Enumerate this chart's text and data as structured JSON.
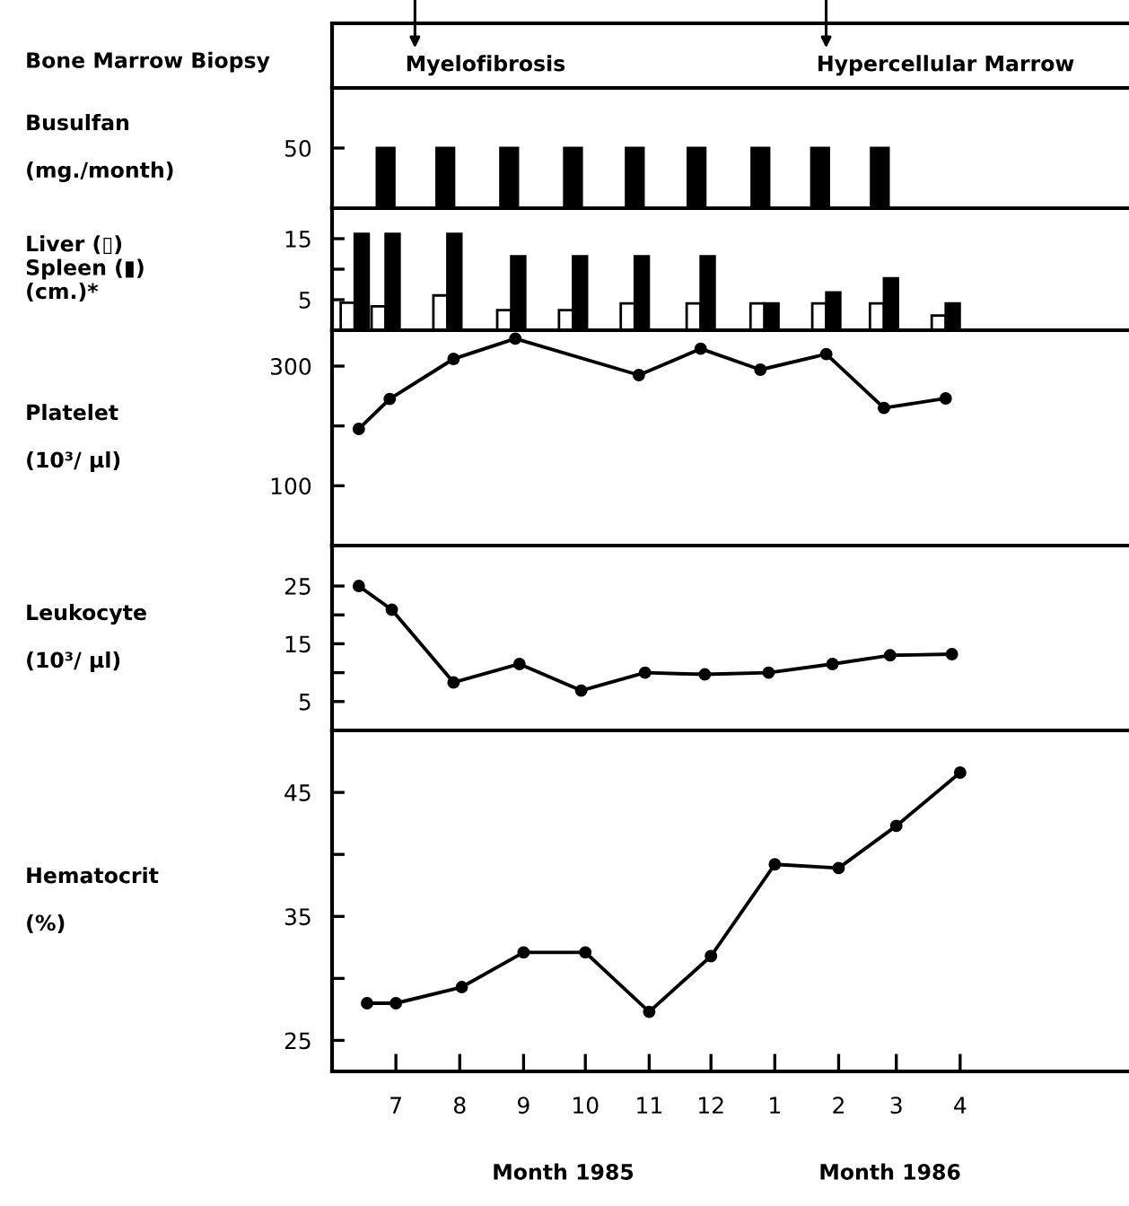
{
  "chart_data": [
    {
      "type": "bar",
      "ylabel": "Busulfan\n\n(mg./month)",
      "xlim": [
        "1985-05-31",
        "1986-06-22"
      ],
      "ylim": [
        0,
        100
      ],
      "yticks": [
        50
      ],
      "tick_labels": "y",
      "annotations": [
        "Bone Marrow Biopsy",
        "Myelofibrosis",
        "Hypercellular Marrow"
      ],
      "x": [
        "1985-06-26",
        "1985-07-25",
        "1985-08-25",
        "1985-09-25",
        "1985-10-25",
        "1985-11-24",
        "1985-12-25",
        "1986-01-23",
        "1986-02-21"
      ],
      "series": [
        {
          "color": "#000000",
          "values": [
            50,
            50,
            50,
            50,
            50,
            50,
            50,
            50,
            50
          ]
        }
      ]
    },
    {
      "type": "bar",
      "ylabel": "Liver (▯)\nSpleen (▮)\n(cm.)*",
      "xlim": [
        "1985-05-31",
        "1986-06-22"
      ],
      "ylim": [
        0,
        20
      ],
      "yticks": [
        15,
        {
          "value": 10,
          "label": null
        },
        5
      ],
      "tick_labels": "y",
      "x": [
        "1985-06-11",
        "1985-06-26",
        "1985-07-26",
        "1985-08-26",
        "1985-09-25",
        "1985-10-25",
        "1985-11-26",
        "1985-12-27",
        "1986-01-26",
        "1986-02-23",
        "1986-03-25"
      ],
      "series": [
        {
          "color": "#ffffff",
          "values": [
            4.5,
            3.9,
            5.7,
            3.3,
            3.3,
            4.4,
            4.4,
            4.4,
            4.4,
            4.4,
            2.4
          ]
        },
        {
          "color": "#000000",
          "values": [
            15.8,
            15.8,
            15.8,
            12.1,
            12.1,
            12.1,
            12.1,
            4.4,
            6.2,
            8.5,
            4.4
          ]
        }
      ]
    },
    {
      "type": "line",
      "ylabel": "Platelet\n\n(10³/ µl)",
      "xlim": [
        "1985-05-31",
        "1986-06-22"
      ],
      "ylim": [
        0,
        360
      ],
      "yticks": [
        300,
        {
          "value": 200,
          "label": null
        },
        100
      ],
      "tick_labels": "y",
      "marker": "circle",
      "x": [
        "1985-06-13",
        "1985-06-28",
        "1985-07-29",
        "1985-08-28",
        "1985-10-27",
        "1985-11-26",
        "1985-12-25",
        "1986-01-26",
        "1986-02-23",
        "1986-03-25"
      ],
      "series": [
        {
          "color": "#000000",
          "values": [
            195,
            245,
            312,
            346,
            285,
            329,
            294,
            320,
            230,
            246
          ]
        }
      ]
    },
    {
      "type": "line",
      "ylabel": "Leukocyte\n\n(10³/ µl)",
      "xlim": [
        "1985-05-31",
        "1986-06-22"
      ],
      "ylim": [
        0,
        32
      ],
      "yticks": [
        25,
        {
          "value": 20,
          "label": null
        },
        15,
        {
          "value": 10,
          "label": null
        },
        5
      ],
      "tick_labels": "y",
      "marker": "circle",
      "x": [
        "1985-06-13",
        "1985-06-29",
        "1985-07-29",
        "1985-08-30",
        "1985-09-29",
        "1985-10-30",
        "1985-11-28",
        "1985-12-29",
        "1986-01-29",
        "1986-02-26",
        "1986-03-28"
      ],
      "series": [
        {
          "color": "#000000",
          "values": [
            25,
            20.9,
            8.3,
            11.5,
            6.9,
            10.0,
            9.7,
            10.0,
            11.5,
            13.0,
            13.2
          ]
        }
      ]
    },
    {
      "type": "line",
      "ylabel": "Hematocrit\n\n(%)",
      "xlim": [
        "1985-05-31",
        "1986-06-22"
      ],
      "ylim": [
        22.5,
        50
      ],
      "yticks": [
        45,
        {
          "value": 40,
          "label": null
        },
        35,
        {
          "value": 30,
          "label": null
        },
        25
      ],
      "marker": "circle",
      "xticks": [
        {
          "value": "1985-07-01",
          "label": "7"
        },
        {
          "value": "1985-08-01",
          "label": "8"
        },
        {
          "value": "1985-09-01",
          "label": "9"
        },
        {
          "value": "1985-10-01",
          "label": "10"
        },
        {
          "value": "1985-11-01",
          "label": "11"
        },
        {
          "value": "1985-12-01",
          "label": "12"
        },
        {
          "value": "1986-01-01",
          "label": "1"
        },
        {
          "value": "1986-02-01",
          "label": "2"
        },
        {
          "value": "1986-03-01",
          "label": "3"
        },
        {
          "value": "1986-04-01",
          "label": "4"
        }
      ],
      "x": [
        "1985-06-17",
        "1985-07-01",
        "1985-08-02",
        "1985-09-01",
        "1985-10-01",
        "1985-11-01",
        "1985-12-01",
        "1986-01-01",
        "1986-02-01",
        "1986-03-01",
        "1986-04-01"
      ],
      "series": [
        {
          "color": "#000000",
          "values": [
            28.0,
            28.0,
            29.3,
            32.1,
            32.1,
            27.3,
            31.8,
            39.2,
            38.9,
            42.3,
            46.6
          ]
        }
      ],
      "annotations": [
        "Month 1985",
        "Month 1986"
      ]
    }
  ]
}
